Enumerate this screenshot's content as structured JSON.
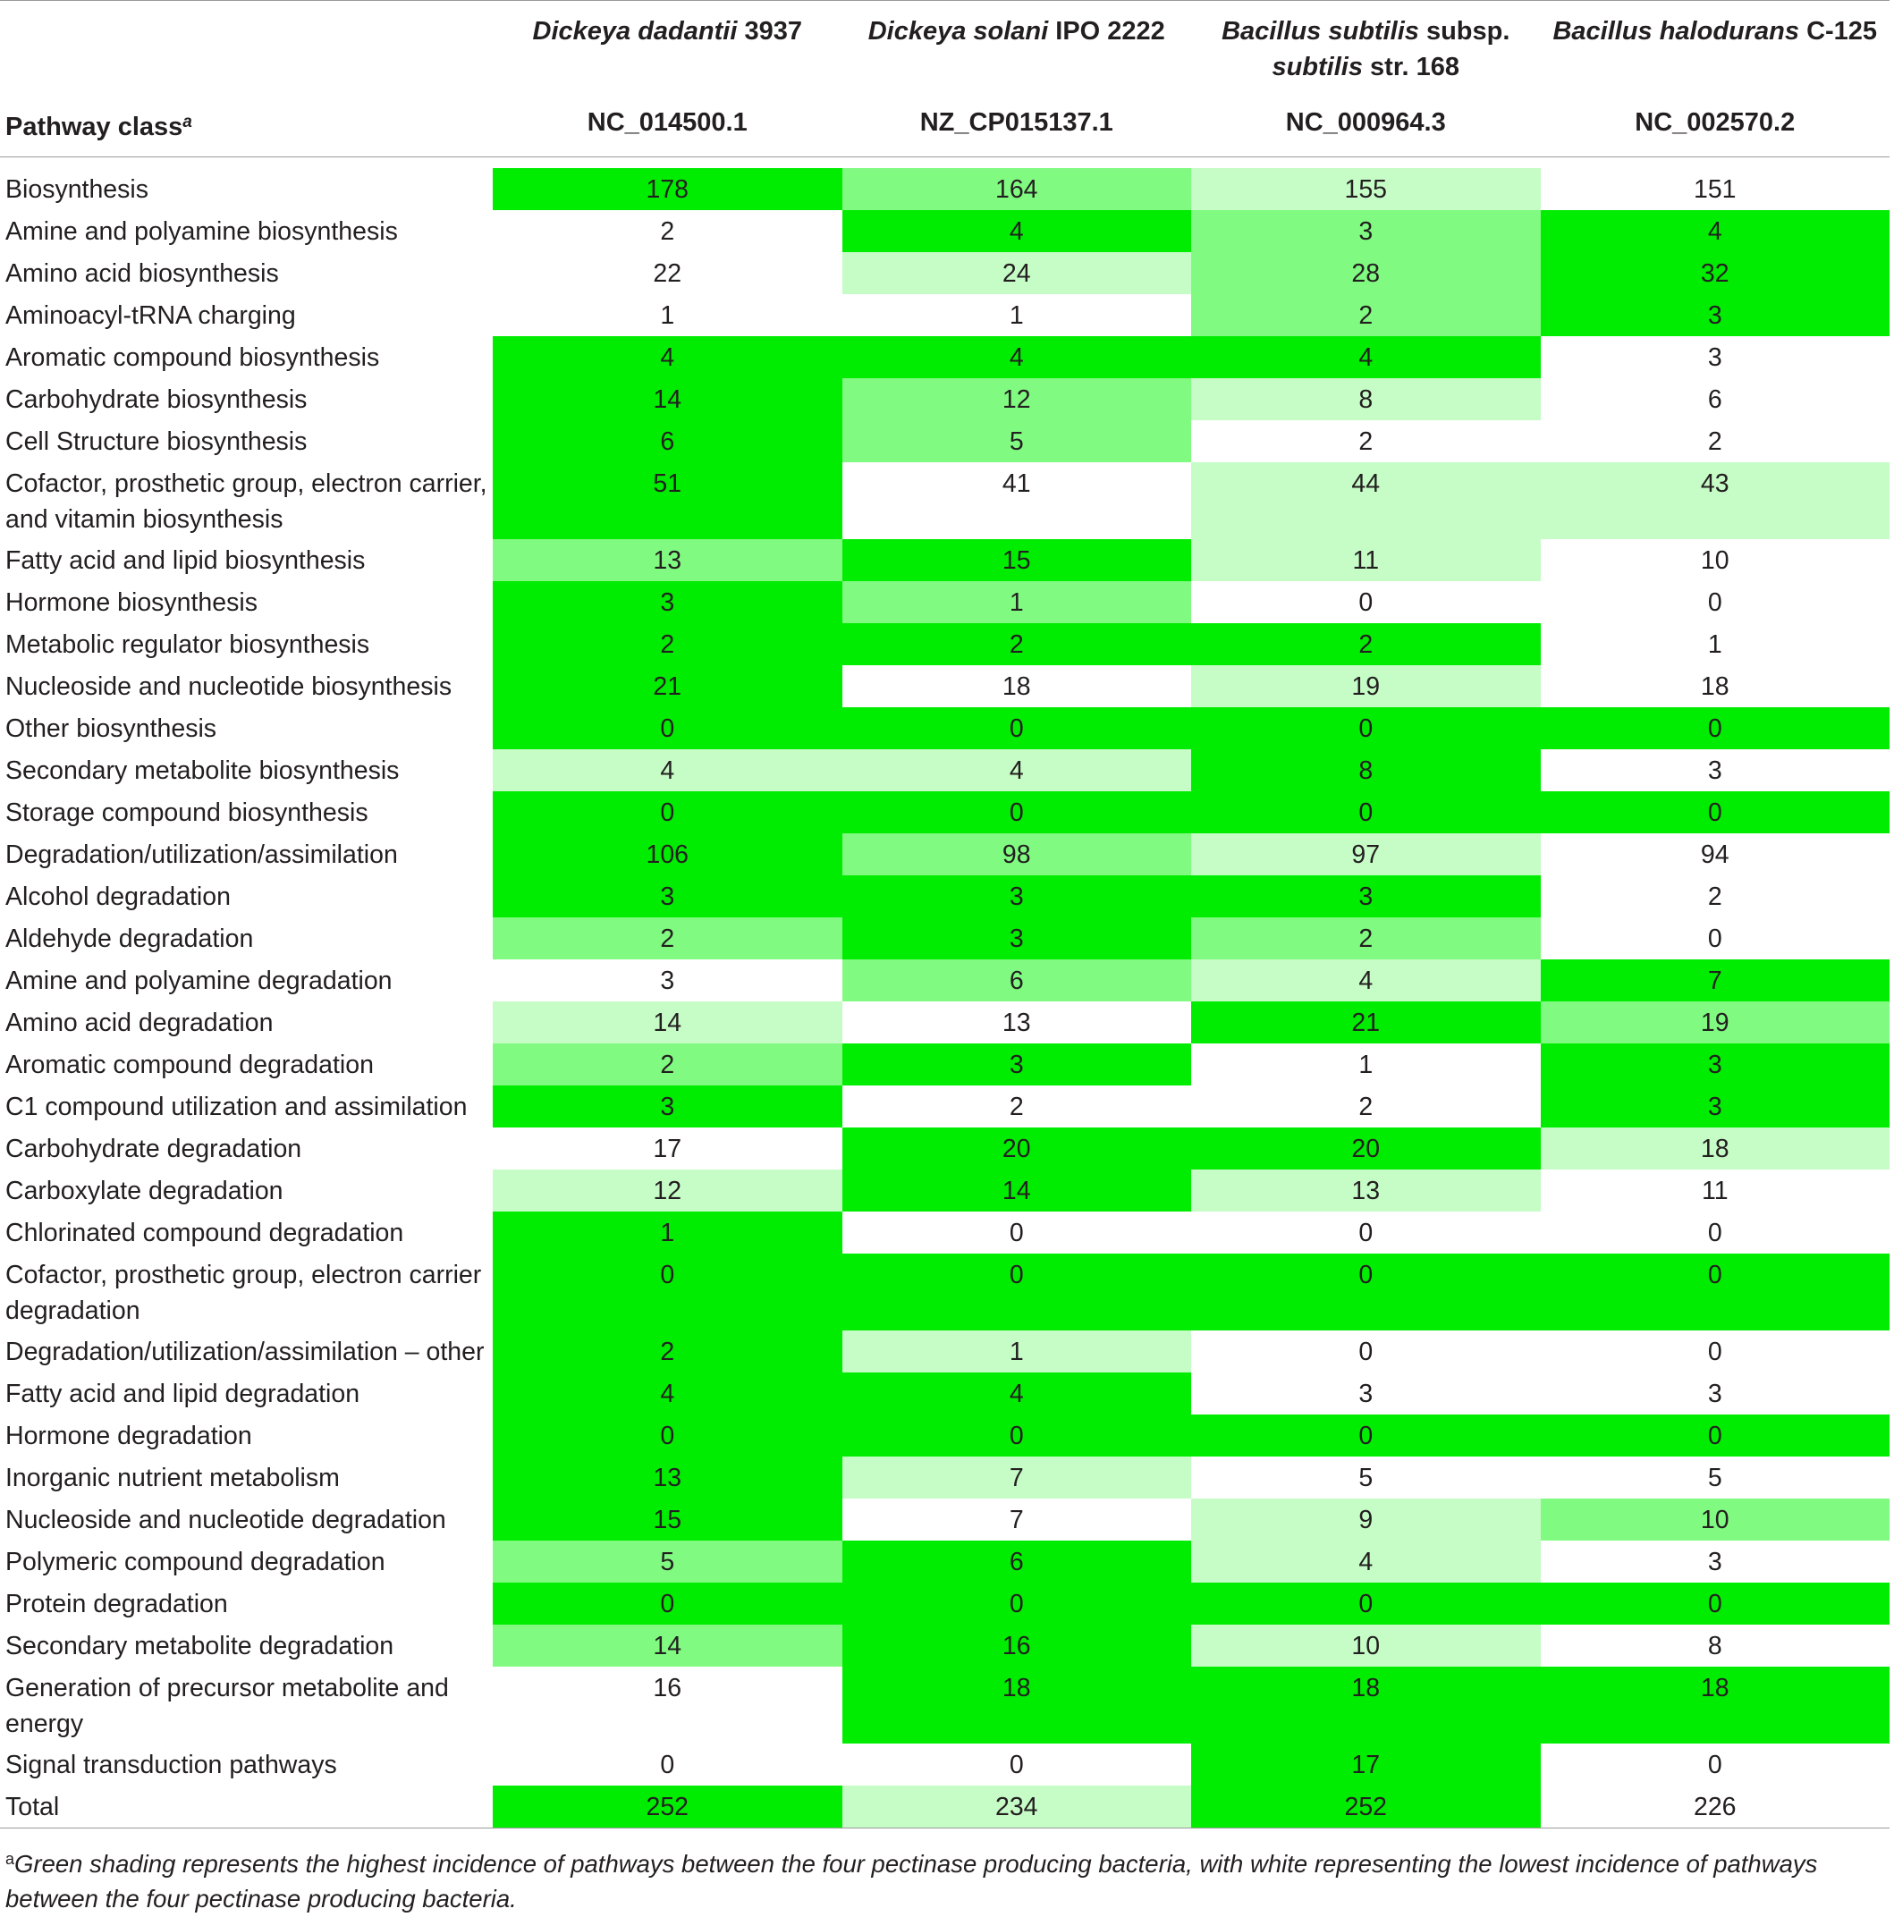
{
  "header": {
    "pathway_label": "Pathway class",
    "pathway_sup": "a",
    "organisms": [
      {
        "genus_species": "Dickeya dadantii",
        "rest": " 3937",
        "line2": "",
        "accession": "NC_014500.1"
      },
      {
        "genus_species": "Dickeya solani",
        "rest": " IPO 2222",
        "line2": "",
        "accession": "NZ_CP015137.1"
      },
      {
        "genus_species": "Bacillus subtilis",
        "rest": " subsp.",
        "line2_italic": "subtilis",
        "line2": " str. 168",
        "accession": "NC_000964.3"
      },
      {
        "genus_species": "Bacillus halodurans",
        "rest": " C-125",
        "line2": "",
        "accession": "NC_002570.2"
      }
    ]
  },
  "rows": [
    {
      "name": "Biosynthesis",
      "values": [
        "178",
        "164",
        "155",
        "151"
      ],
      "shade": [
        3,
        2,
        1,
        0
      ]
    },
    {
      "name": "Amine and polyamine biosynthesis",
      "values": [
        "2",
        "4",
        "3",
        "4"
      ],
      "shade": [
        0,
        3,
        2,
        3
      ]
    },
    {
      "name": "Amino acid biosynthesis",
      "values": [
        "22",
        "24",
        "28",
        "32"
      ],
      "shade": [
        0,
        1,
        2,
        3
      ]
    },
    {
      "name": "Aminoacyl-tRNA charging",
      "values": [
        "1",
        "1",
        "2",
        "3"
      ],
      "shade": [
        0,
        0,
        2,
        3
      ]
    },
    {
      "name": "Aromatic compound biosynthesis",
      "values": [
        "4",
        "4",
        "4",
        "3"
      ],
      "shade": [
        3,
        3,
        3,
        0
      ]
    },
    {
      "name": "Carbohydrate biosynthesis",
      "values": [
        "14",
        "12",
        "8",
        "6"
      ],
      "shade": [
        3,
        2,
        1,
        0
      ]
    },
    {
      "name": "Cell Structure biosynthesis",
      "values": [
        "6",
        "5",
        "2",
        "2"
      ],
      "shade": [
        3,
        2,
        0,
        0
      ]
    },
    {
      "name": "Cofactor, prosthetic group, electron carrier, and vitamin biosynthesis",
      "values": [
        "51",
        "41",
        "44",
        "43"
      ],
      "shade": [
        3,
        0,
        1,
        1
      ],
      "tall": true
    },
    {
      "name": "Fatty acid and lipid biosynthesis",
      "values": [
        "13",
        "15",
        "11",
        "10"
      ],
      "shade": [
        2,
        3,
        1,
        0
      ]
    },
    {
      "name": "Hormone biosynthesis",
      "values": [
        "3",
        "1",
        "0",
        "0"
      ],
      "shade": [
        3,
        2,
        0,
        0
      ]
    },
    {
      "name": "Metabolic regulator biosynthesis",
      "values": [
        "2",
        "2",
        "2",
        "1"
      ],
      "shade": [
        3,
        3,
        3,
        0
      ]
    },
    {
      "name": "Nucleoside and nucleotide biosynthesis",
      "values": [
        "21",
        "18",
        "19",
        "18"
      ],
      "shade": [
        3,
        0,
        1,
        0
      ]
    },
    {
      "name": "Other biosynthesis",
      "values": [
        "0",
        "0",
        "0",
        "0"
      ],
      "shade": [
        3,
        3,
        3,
        3
      ]
    },
    {
      "name": "Secondary metabolite biosynthesis",
      "values": [
        "4",
        "4",
        "8",
        "3"
      ],
      "shade": [
        1,
        1,
        3,
        0
      ]
    },
    {
      "name": "Storage compound biosynthesis",
      "values": [
        "0",
        "0",
        "0",
        "0"
      ],
      "shade": [
        3,
        3,
        3,
        3
      ]
    },
    {
      "name": "Degradation/utilization/assimilation",
      "values": [
        "106",
        "98",
        "97",
        "94"
      ],
      "shade": [
        3,
        2,
        1,
        0
      ]
    },
    {
      "name": "Alcohol degradation",
      "values": [
        "3",
        "3",
        "3",
        "2"
      ],
      "shade": [
        3,
        3,
        3,
        0
      ]
    },
    {
      "name": "Aldehyde degradation",
      "values": [
        "2",
        "3",
        "2",
        "0"
      ],
      "shade": [
        2,
        3,
        2,
        0
      ]
    },
    {
      "name": "Amine and polyamine degradation",
      "values": [
        "3",
        "6",
        "4",
        "7"
      ],
      "shade": [
        0,
        2,
        1,
        3
      ]
    },
    {
      "name": "Amino acid degradation",
      "values": [
        "14",
        "13",
        "21",
        "19"
      ],
      "shade": [
        1,
        0,
        3,
        2
      ]
    },
    {
      "name": "Aromatic compound degradation",
      "values": [
        "2",
        "3",
        "1",
        "3"
      ],
      "shade": [
        2,
        3,
        0,
        3
      ]
    },
    {
      "name": "C1 compound utilization and assimilation",
      "values": [
        "3",
        "2",
        "2",
        "3"
      ],
      "shade": [
        3,
        0,
        0,
        3
      ]
    },
    {
      "name": "Carbohydrate degradation",
      "values": [
        "17",
        "20",
        "20",
        "18"
      ],
      "shade": [
        0,
        3,
        3,
        1
      ]
    },
    {
      "name": "Carboxylate degradation",
      "values": [
        "12",
        "14",
        "13",
        "11"
      ],
      "shade": [
        1,
        3,
        1,
        0
      ]
    },
    {
      "name": "Chlorinated compound degradation",
      "values": [
        "1",
        "0",
        "0",
        "0"
      ],
      "shade": [
        3,
        0,
        0,
        0
      ]
    },
    {
      "name": "Cofactor, prosthetic group, electron carrier degradation",
      "values": [
        "0",
        "0",
        "0",
        "0"
      ],
      "shade": [
        3,
        3,
        3,
        3
      ],
      "tall": true
    },
    {
      "name": "Degradation/utilization/assimilation – other",
      "values": [
        "2",
        "1",
        "0",
        "0"
      ],
      "shade": [
        3,
        1,
        0,
        0
      ]
    },
    {
      "name": "Fatty acid and lipid degradation",
      "values": [
        "4",
        "4",
        "3",
        "3"
      ],
      "shade": [
        3,
        3,
        0,
        0
      ]
    },
    {
      "name": "Hormone degradation",
      "values": [
        "0",
        "0",
        "0",
        "0"
      ],
      "shade": [
        3,
        3,
        3,
        3
      ]
    },
    {
      "name": "Inorganic nutrient metabolism",
      "values": [
        "13",
        "7",
        "5",
        "5"
      ],
      "shade": [
        3,
        1,
        0,
        0
      ]
    },
    {
      "name": "Nucleoside and nucleotide degradation",
      "values": [
        "15",
        "7",
        "9",
        "10"
      ],
      "shade": [
        3,
        0,
        1,
        2
      ]
    },
    {
      "name": "Polymeric compound degradation",
      "values": [
        "5",
        "6",
        "4",
        "3"
      ],
      "shade": [
        2,
        3,
        1,
        0
      ]
    },
    {
      "name": "Protein degradation",
      "values": [
        "0",
        "0",
        "0",
        "0"
      ],
      "shade": [
        3,
        3,
        3,
        3
      ]
    },
    {
      "name": "Secondary metabolite degradation",
      "values": [
        "14",
        "16",
        "10",
        "8"
      ],
      "shade": [
        2,
        3,
        1,
        0
      ]
    },
    {
      "name": "Generation of precursor metabolite and energy",
      "values": [
        "16",
        "18",
        "18",
        "18"
      ],
      "shade": [
        0,
        3,
        3,
        3
      ],
      "tall": true
    },
    {
      "name": "Signal transduction pathways",
      "values": [
        "0",
        "0",
        "17",
        "0"
      ],
      "shade": [
        0,
        0,
        3,
        0
      ]
    },
    {
      "name": "Total",
      "values": [
        "252",
        "234",
        "252",
        "226"
      ],
      "shade": [
        3,
        1,
        3,
        0
      ]
    }
  ],
  "footnote": {
    "sup": "a",
    "text": "Green shading represents the highest incidence of pathways between the four pectinase producing bacteria, with white representing the lowest incidence of pathways between the four pectinase producing bacteria."
  }
}
